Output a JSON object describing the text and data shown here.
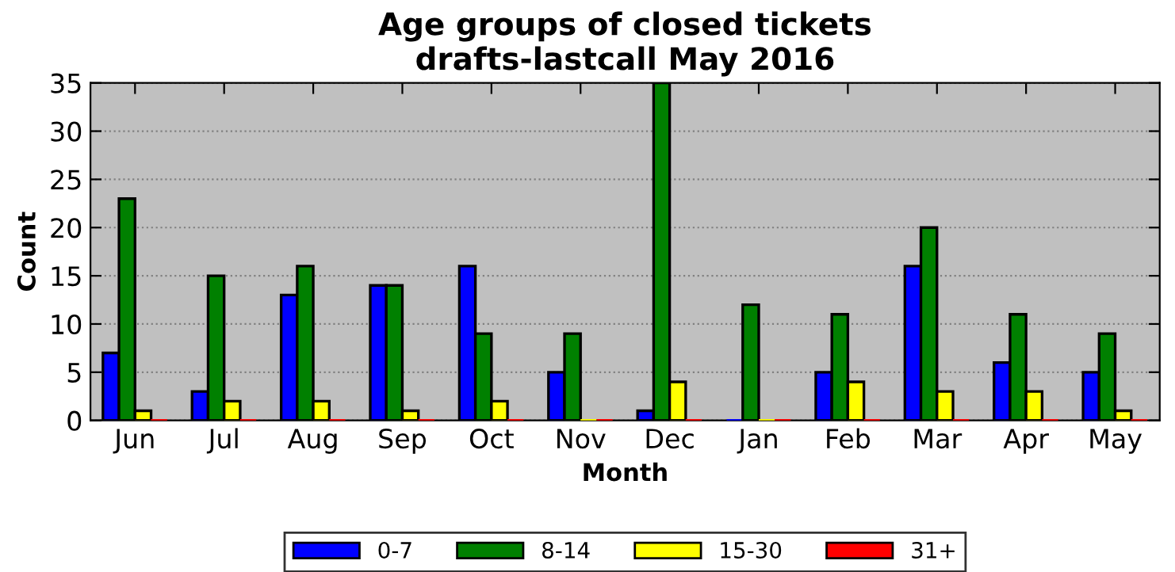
{
  "chart_data": {
    "type": "bar",
    "title": "Age groups of closed tickets\ndrafts-lastcall May 2016",
    "xlabel": "Month",
    "ylabel": "Count",
    "categories": [
      "Jun",
      "Jul",
      "Aug",
      "Sep",
      "Oct",
      "Nov",
      "Dec",
      "Jan",
      "Feb",
      "Mar",
      "Apr",
      "May"
    ],
    "series": [
      {
        "name": "0-7",
        "color": "#0000ff",
        "values": [
          7,
          3,
          13,
          14,
          16,
          5,
          1,
          0,
          5,
          16,
          6,
          5
        ]
      },
      {
        "name": "8-14",
        "color": "#008000",
        "values": [
          23,
          15,
          16,
          14,
          9,
          9,
          35,
          12,
          11,
          20,
          11,
          9
        ]
      },
      {
        "name": "15-30",
        "color": "#ffff00",
        "values": [
          1,
          2,
          2,
          1,
          2,
          0,
          4,
          0,
          4,
          3,
          3,
          1
        ]
      },
      {
        "name": "31+",
        "color": "#ff0000",
        "values": [
          0,
          0,
          0,
          0,
          0,
          0,
          0,
          0,
          0,
          0,
          0,
          0
        ]
      }
    ],
    "ylim": [
      0,
      35
    ],
    "yticks": [
      0,
      5,
      10,
      15,
      20,
      25,
      30,
      35
    ],
    "grid": "y",
    "legend": "bottom"
  }
}
